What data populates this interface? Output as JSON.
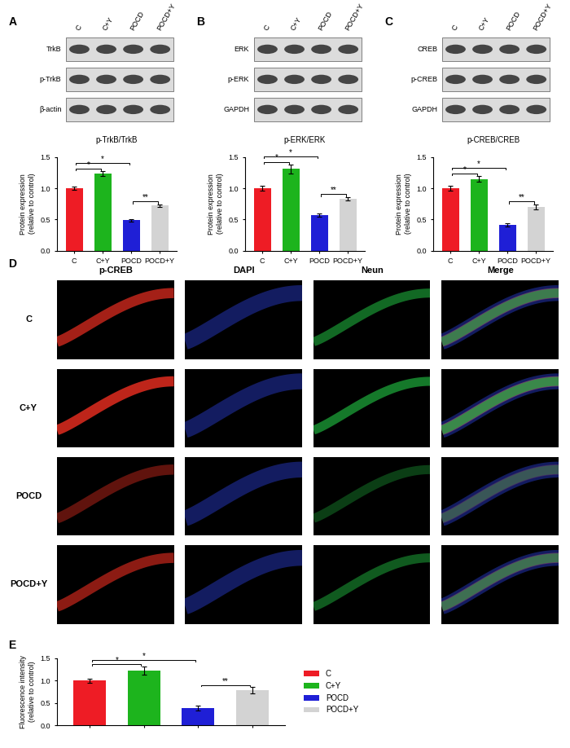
{
  "panel_labels": [
    "A",
    "B",
    "C",
    "D",
    "E"
  ],
  "blots": [
    {
      "lanes": [
        "C",
        "C+Y",
        "POCD",
        "POCD+Y"
      ],
      "rows": [
        "TrkB",
        "p-TrkB",
        "β-actin"
      ]
    },
    {
      "lanes": [
        "C",
        "C+Y",
        "POCD",
        "POCD+Y"
      ],
      "rows": [
        "ERK",
        "p-ERK",
        "GAPDH"
      ]
    },
    {
      "lanes": [
        "C",
        "C+Y",
        "POCD",
        "POCD+Y"
      ],
      "rows": [
        "CREB",
        "p-CREB",
        "GAPDH"
      ]
    }
  ],
  "micrographs": {
    "columns": [
      {
        "name": "p-CREB",
        "color": "#d42a1e"
      },
      {
        "name": "DAPI",
        "color": "#2b3fd6"
      },
      {
        "name": "Neun",
        "color": "#1fae3c"
      },
      {
        "name": "Merge"
      }
    ],
    "rows": [
      "C",
      "C+Y",
      "POCD",
      "POCD+Y"
    ]
  },
  "chart_data": [
    {
      "type": "bar",
      "title": "p-TrkB/TrkB",
      "y_label": "Protein expression\n(relative to control)",
      "categories": [
        "C",
        "C+Y",
        "POCD",
        "POCD+Y"
      ],
      "values": [
        1.0,
        1.23,
        0.49,
        0.72
      ],
      "errors": [
        0.03,
        0.04,
        0.02,
        0.02
      ],
      "colors": [
        "#ee1c25",
        "#1db41d",
        "#1f1fd6",
        "#d3d3d3"
      ],
      "ylim": [
        0,
        1.5
      ],
      "yticks": [
        {
          "value": 0,
          "label": "0.0"
        },
        {
          "value": 0.5,
          "label": "0.5"
        },
        {
          "value": 1.0,
          "label": "1.0"
        },
        {
          "value": 1.5,
          "label": "1.5"
        }
      ],
      "annotations": [
        {
          "from": "C",
          "to": "C+Y",
          "text": "*"
        },
        {
          "from": "C",
          "to": "POCD",
          "text": "*"
        },
        {
          "from": "POCD",
          "to": "POCD+Y",
          "text": "**"
        }
      ]
    },
    {
      "type": "bar",
      "title": "p-ERK/ERK",
      "y_label": "Protein expression\n(relative to control)",
      "categories": [
        "C",
        "C+Y",
        "POCD",
        "POCD+Y"
      ],
      "values": [
        1.0,
        1.31,
        0.57,
        0.83
      ],
      "errors": [
        0.04,
        0.07,
        0.03,
        0.03
      ],
      "colors": [
        "#ee1c25",
        "#1db41d",
        "#1f1fd6",
        "#d3d3d3"
      ],
      "ylim": [
        0,
        1.5
      ],
      "yticks": [
        {
          "value": 0,
          "label": "0.0"
        },
        {
          "value": 0.5,
          "label": "0.5"
        },
        {
          "value": 1.0,
          "label": "1.0"
        },
        {
          "value": 1.5,
          "label": "1.5"
        }
      ],
      "annotations": [
        {
          "from": "C",
          "to": "C+Y",
          "text": "*"
        },
        {
          "from": "C",
          "to": "POCD",
          "text": "*"
        },
        {
          "from": "POCD",
          "to": "POCD+Y",
          "text": "**"
        }
      ]
    },
    {
      "type": "bar",
      "title": "p-CREB/CREB",
      "y_label": "Protein expression\n(relative to control)",
      "categories": [
        "C",
        "C+Y",
        "POCD",
        "POCD+Y"
      ],
      "values": [
        1.0,
        1.15,
        0.41,
        0.7
      ],
      "errors": [
        0.04,
        0.04,
        0.03,
        0.04
      ],
      "colors": [
        "#ee1c25",
        "#1db41d",
        "#1f1fd6",
        "#d3d3d3"
      ],
      "ylim": [
        0,
        1.5
      ],
      "yticks": [
        {
          "value": 0,
          "label": "0.0"
        },
        {
          "value": 0.5,
          "label": "0.5"
        },
        {
          "value": 1.0,
          "label": "1.0"
        },
        {
          "value": 1.5,
          "label": "1.5"
        }
      ],
      "annotations": [
        {
          "from": "C",
          "to": "C+Y",
          "text": "*"
        },
        {
          "from": "C",
          "to": "POCD",
          "text": "*"
        },
        {
          "from": "POCD",
          "to": "POCD+Y",
          "text": "**"
        }
      ]
    },
    {
      "type": "bar",
      "y_label": "Fluorescence intensity\n(relative to control)",
      "categories": [
        "C",
        "C+Y",
        "POCD",
        "POCD+Y"
      ],
      "values": [
        1.0,
        1.23,
        0.39,
        0.79
      ],
      "errors": [
        0.05,
        0.09,
        0.06,
        0.07
      ],
      "colors": [
        "#ee1c25",
        "#1db41d",
        "#1f1fd6",
        "#d3d3d3"
      ],
      "ylim": [
        0,
        1.5
      ],
      "yticks": [
        {
          "value": 0,
          "label": "0.0"
        },
        {
          "value": 0.5,
          "label": "0.5"
        },
        {
          "value": 1.0,
          "label": "1.0"
        },
        {
          "value": 1.5,
          "label": "1.5"
        }
      ],
      "annotations": [
        {
          "from": "C",
          "to": "C+Y",
          "text": "*"
        },
        {
          "from": "C",
          "to": "POCD",
          "text": "*"
        },
        {
          "from": "POCD",
          "to": "POCD+Y",
          "text": "**"
        }
      ],
      "legend": "right",
      "tick_labels": "y"
    }
  ]
}
